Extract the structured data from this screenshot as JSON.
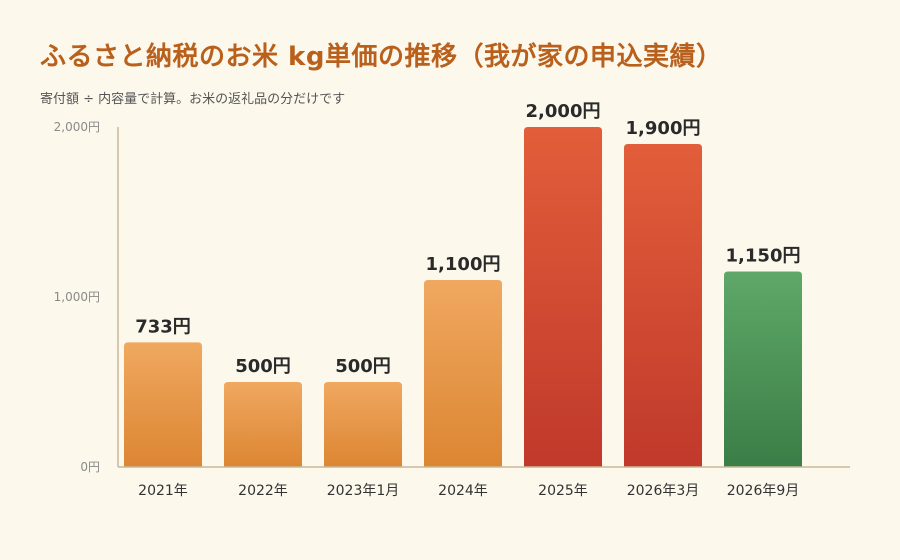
{
  "header": {
    "title": "ふるさと納税のお米 kg単価の推移（我が家の申込実績）",
    "subtitle": "寄付額 ÷ 内容量で計算。お米の返礼品の分だけです"
  },
  "colors": {
    "background": "#fdf8ec",
    "title": "#b8601c",
    "orange_top": "#f0a860",
    "orange_bottom": "#dc8632",
    "red_top": "#e25e3a",
    "red_bottom": "#c0392b",
    "green_top": "#5fa869",
    "green_bottom": "#3b7d46",
    "axis": "#c8b89a"
  },
  "chart_data": {
    "type": "bar",
    "title": "ふるさと納税のお米 kg単価の推移（我が家の申込実績）",
    "subtitle": "寄付額 ÷ 内容量で計算。お米の返礼品の分だけです",
    "xlabel": "",
    "ylabel": "",
    "ylim": [
      0,
      2000
    ],
    "yticks": [
      {
        "value": 0,
        "label": "0円"
      },
      {
        "value": 1000,
        "label": "1,000円"
      },
      {
        "value": 2000,
        "label": "2,000円"
      }
    ],
    "grid": false,
    "categories": [
      "2021年",
      "2022年",
      "2023年1月",
      "2024年",
      "2025年",
      "2026年3月",
      "2026年9月"
    ],
    "values": [
      733,
      500,
      500,
      1100,
      2000,
      1900,
      1150
    ],
    "value_labels": [
      "733円",
      "500円",
      "500円",
      "1,100円",
      "2,000円",
      "1,900円",
      "1,150円"
    ],
    "bar_colors": [
      "orange",
      "orange",
      "orange",
      "orange",
      "red",
      "red",
      "green"
    ]
  }
}
